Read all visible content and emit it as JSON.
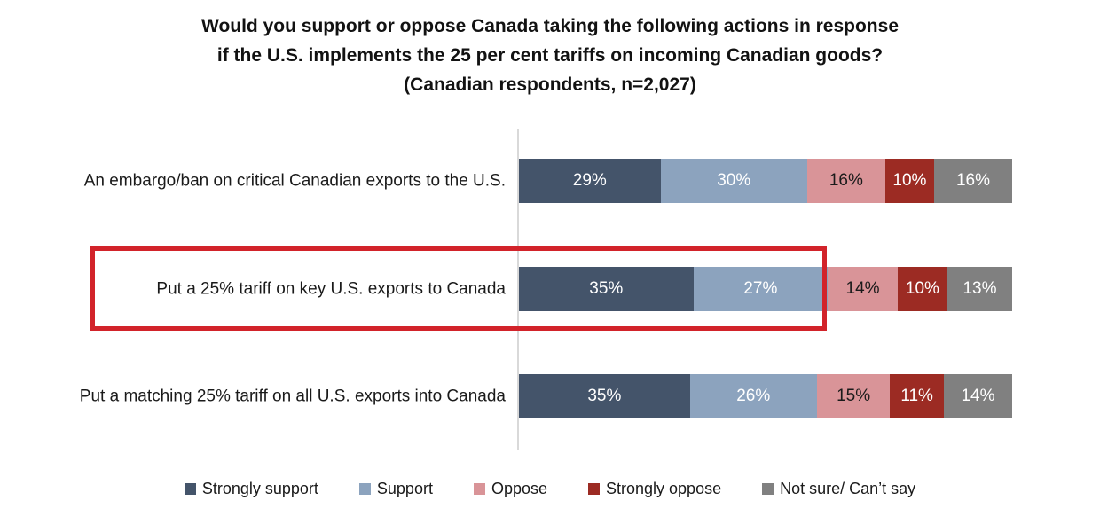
{
  "header": {
    "title_lines": [
      "Would you support or oppose Canada taking the following actions in response",
      "if the U.S. implements the 25 per cent tariffs on incoming Canadian goods?",
      "(Canadian respondents, n=2,027)"
    ]
  },
  "chart_data": {
    "type": "bar",
    "orientation": "horizontal",
    "stacked": true,
    "title": "Would you support or oppose Canada taking the following actions in response if the U.S. implements the 25 per cent tariffs on incoming Canadian goods? (Canadian respondents, n=2,027)",
    "categories": [
      "An embargo/ban on critical Canadian exports to the U.S.",
      "Put a 25% tariff on key U.S. exports to Canada",
      "Put a matching 25% tariff on all U.S. exports into Canada"
    ],
    "series": [
      {
        "name": "Strongly support",
        "color": "#44546A",
        "text_color": "#ffffff",
        "values": [
          29,
          35,
          35
        ]
      },
      {
        "name": "Support",
        "color": "#8CA3BE",
        "text_color": "#ffffff",
        "values": [
          30,
          27,
          26
        ]
      },
      {
        "name": "Oppose",
        "color": "#D99498",
        "text_color": "#1a1a1a",
        "values": [
          16,
          14,
          15
        ]
      },
      {
        "name": "Strongly oppose",
        "color": "#9C2B23",
        "text_color": "#ffffff",
        "values": [
          10,
          10,
          11
        ]
      },
      {
        "name": "Not sure/ Can’t say",
        "color": "#808080",
        "text_color": "#ffffff",
        "values": [
          16,
          13,
          14
        ]
      }
    ],
    "value_suffix": "%",
    "legend_position": "bottom",
    "grid": false,
    "axis_line_color": "#d9d9d9",
    "highlight": {
      "row_index": 1,
      "color": "#d2232a"
    }
  }
}
